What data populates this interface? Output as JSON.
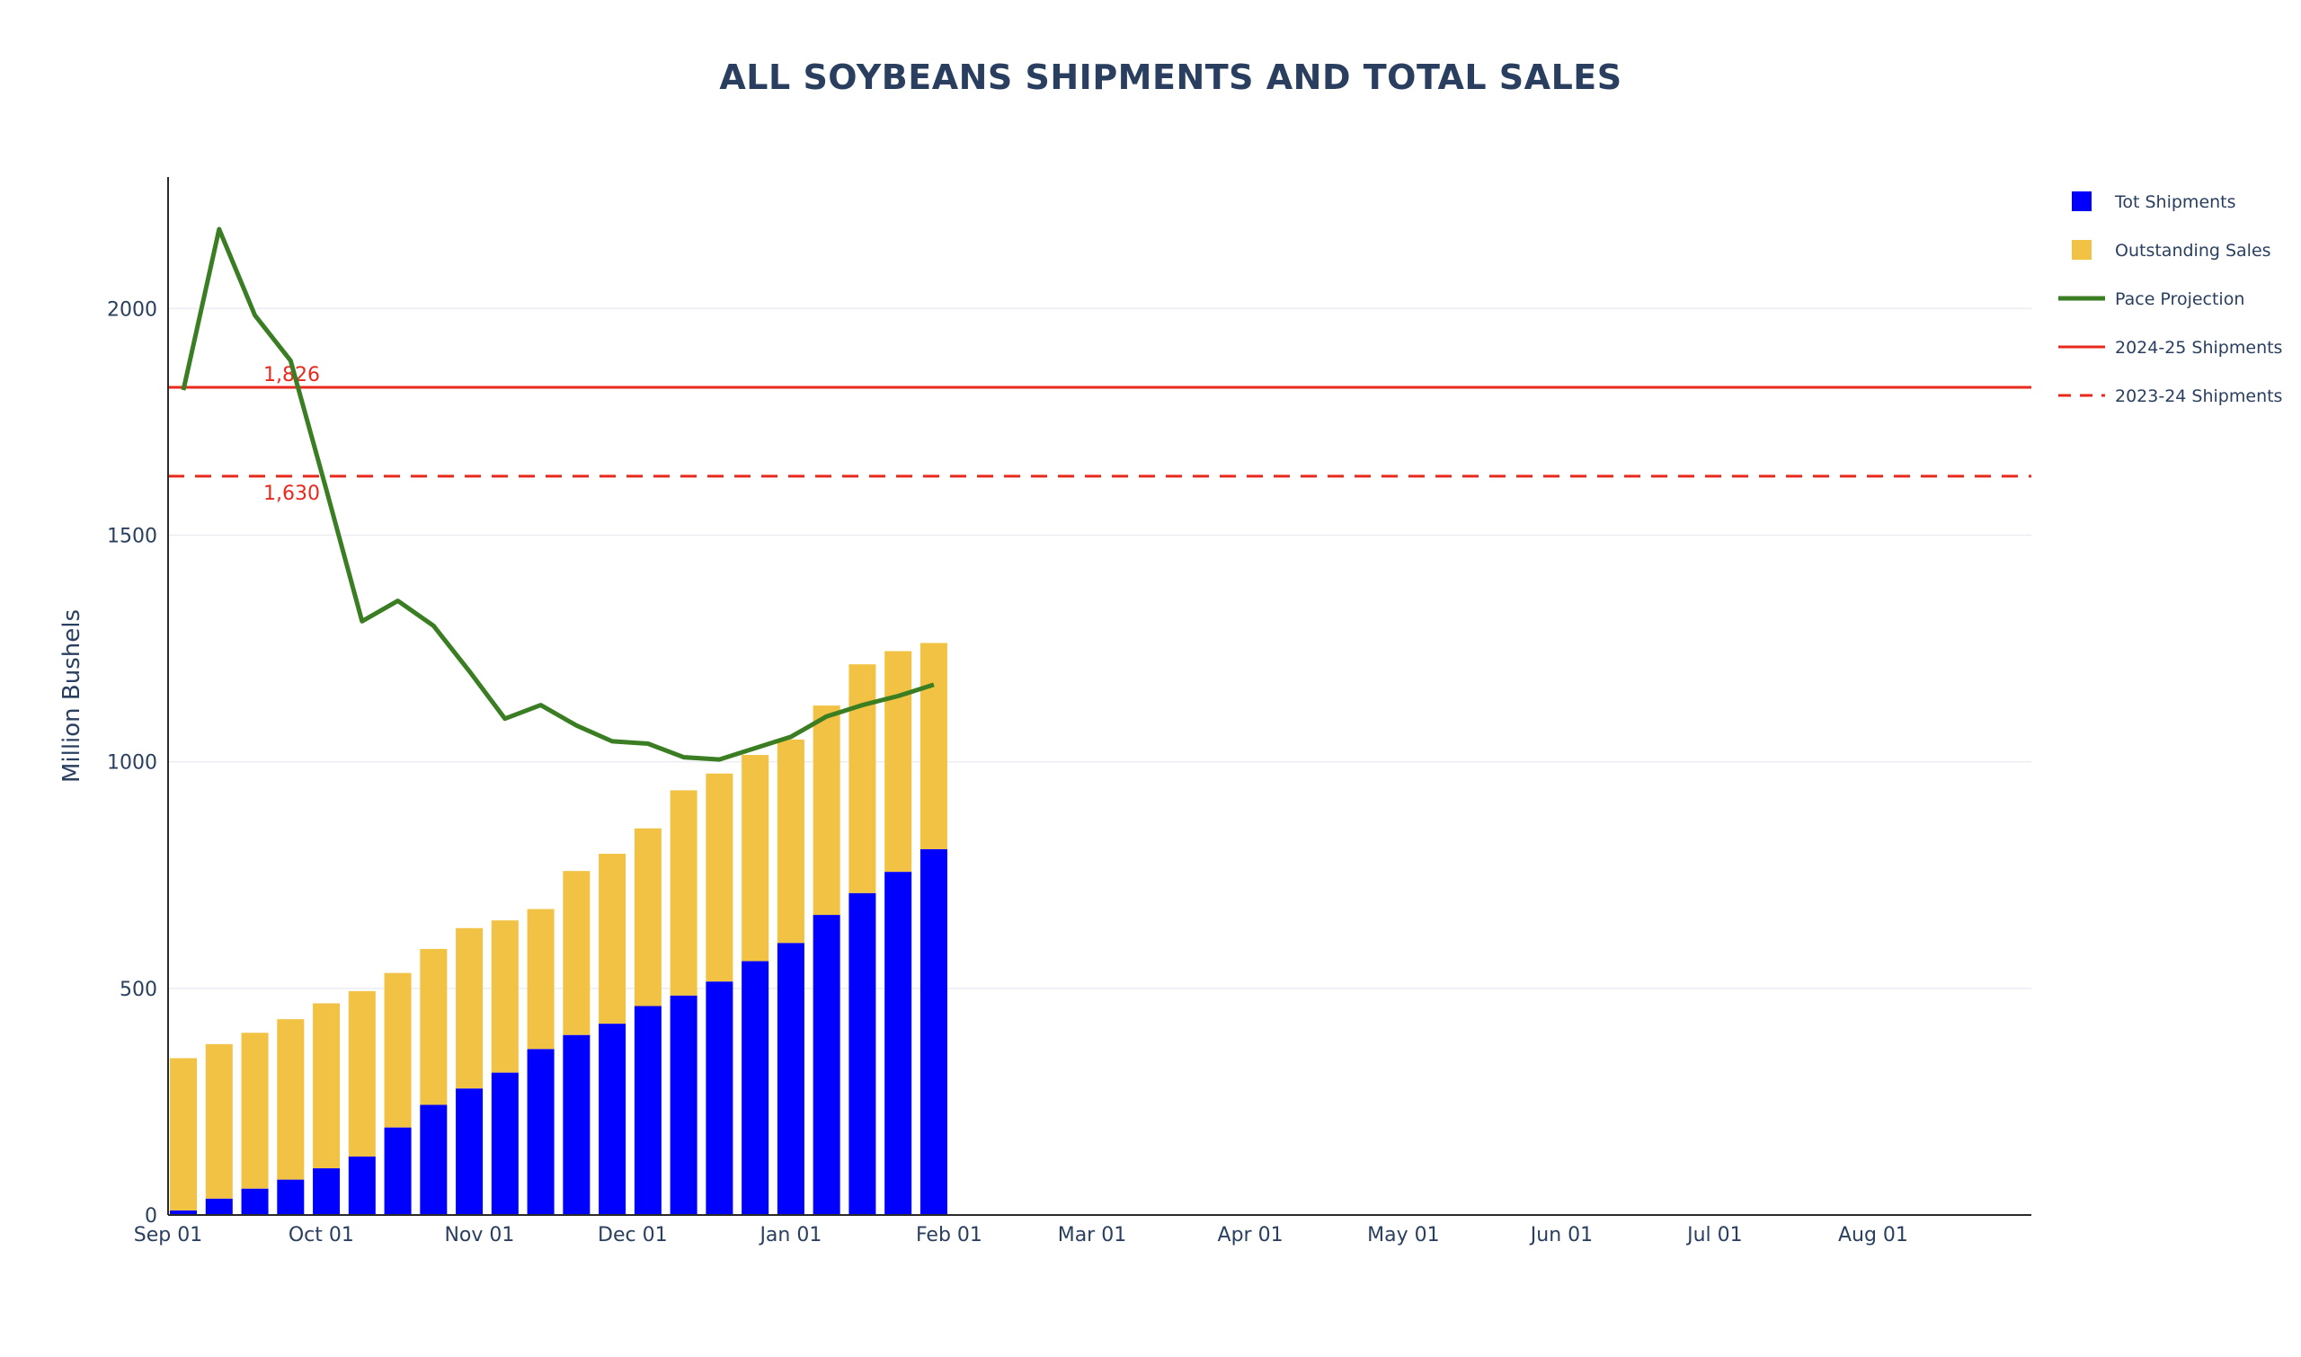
{
  "chart_data": {
    "type": "bar",
    "title": "ALL SOYBEANS SHIPMENTS AND TOTAL SALES",
    "ylabel": "Million Bushels",
    "xlabel": "",
    "x_range_days": [
      0,
      365
    ],
    "ylim": [
      0,
      2290
    ],
    "y_ticks": [
      0,
      500,
      1000,
      1500,
      2000
    ],
    "x_ticks": [
      {
        "label": "Sep 01",
        "day": 0
      },
      {
        "label": "Oct 01",
        "day": 30
      },
      {
        "label": "Nov 01",
        "day": 61
      },
      {
        "label": "Dec 01",
        "day": 91
      },
      {
        "label": "Jan 01",
        "day": 122
      },
      {
        "label": "Feb 01",
        "day": 153
      },
      {
        "label": "Mar 01",
        "day": 181
      },
      {
        "label": "Apr 01",
        "day": 212
      },
      {
        "label": "May 01",
        "day": 242
      },
      {
        "label": "Jun 01",
        "day": 273
      },
      {
        "label": "Jul 01",
        "day": 303
      },
      {
        "label": "Aug 01",
        "day": 334
      }
    ],
    "weeks": [
      "Sep 03",
      "Sep 10",
      "Sep 17",
      "Sep 24",
      "Oct 01",
      "Oct 08",
      "Oct 15",
      "Oct 22",
      "Oct 29",
      "Nov 05",
      "Nov 12",
      "Nov 19",
      "Nov 26",
      "Dec 03",
      "Dec 10",
      "Dec 17",
      "Dec 24",
      "Dec 31",
      "Jan 07",
      "Jan 14",
      "Jan 21",
      "Jan 28"
    ],
    "series": [
      {
        "name": "Tot Shipments",
        "kind": "bar",
        "color": "#0000ff",
        "values": [
          10,
          36,
          58,
          78,
          103,
          129,
          193,
          243,
          279,
          314,
          366,
          397,
          422,
          461,
          484,
          515,
          560,
          600,
          662,
          710,
          757,
          807
        ]
      },
      {
        "name": "Outstanding Sales",
        "kind": "bar-stack",
        "color": "#f2c244",
        "values": [
          336,
          341,
          344,
          354,
          364,
          365,
          341,
          344,
          354,
          336,
          309,
          362,
          375,
          392,
          453,
          459,
          455,
          449,
          462,
          505,
          487,
          455
        ]
      },
      {
        "name": "Pace Projection",
        "kind": "line",
        "color": "#3a7d22",
        "days": [
          3,
          10,
          17,
          24,
          31,
          38,
          45,
          52,
          59,
          66,
          73,
          80,
          87,
          94,
          101,
          108,
          115,
          122,
          129,
          136,
          143,
          150
        ],
        "values": [
          1820,
          2175,
          1985,
          1885,
          1600,
          1310,
          1355,
          1300,
          1200,
          1095,
          1125,
          1080,
          1045,
          1040,
          1010,
          1005,
          1030,
          1055,
          1100,
          1125,
          1145,
          1170
        ]
      },
      {
        "name": "2024-25 Shipments",
        "kind": "hline",
        "color": "#e8291c",
        "value": 1826,
        "label": "1,826",
        "dash": "solid"
      },
      {
        "name": "2023-24 Shipments",
        "kind": "hline",
        "color": "#e8291c",
        "value": 1630,
        "label": "1,630",
        "dash": "dashed"
      }
    ],
    "grid": "horizontal",
    "legend_position": "top-right"
  }
}
